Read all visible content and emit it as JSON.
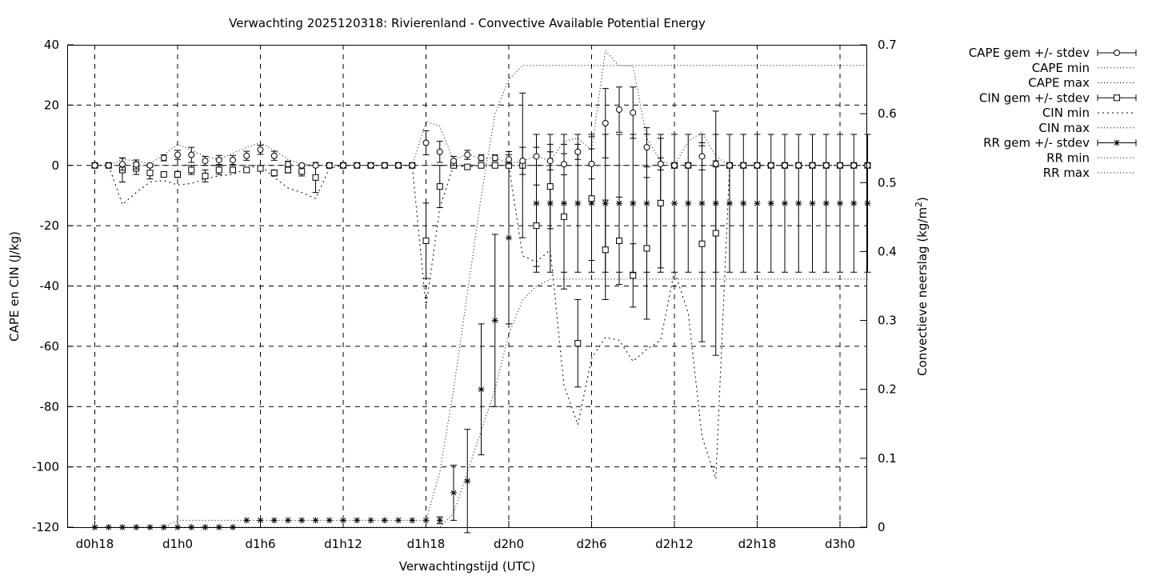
{
  "chart_data": {
    "type": "line",
    "title": "Verwachting 2025120318: Rivierenland - Convective Available Potential Energy",
    "xlabel": "Verwachtingstijd (UTC)",
    "ylabel": "CAPE en CIN (J/kg)",
    "y2label": "Convectieve neerslag (kg/m",
    "y2label_sup": "2",
    "y2label_end": ")",
    "xlim": [
      0,
      56
    ],
    "ylim": [
      -120,
      40
    ],
    "y2lim": [
      0,
      0.7
    ],
    "grid": true,
    "legend_position": "top-right",
    "xticks": [
      {
        "v": 0,
        "label": "d0h18"
      },
      {
        "v": 6,
        "label": "d1h0"
      },
      {
        "v": 12,
        "label": "d1h6"
      },
      {
        "v": 18,
        "label": "d1h12"
      },
      {
        "v": 24,
        "label": "d1h18"
      },
      {
        "v": 30,
        "label": "d2h0"
      },
      {
        "v": 36,
        "label": "d2h6"
      },
      {
        "v": 42,
        "label": "d2h12"
      },
      {
        "v": 48,
        "label": "d2h18"
      },
      {
        "v": 54,
        "label": "d3h0"
      }
    ],
    "yticks": [
      {
        "v": 40,
        "label": "40"
      },
      {
        "v": 20,
        "label": "20"
      },
      {
        "v": 0,
        "label": "0"
      },
      {
        "v": -20,
        "label": "-20"
      },
      {
        "v": -40,
        "label": "-40"
      },
      {
        "v": -60,
        "label": "-60"
      },
      {
        "v": -80,
        "label": "-80"
      },
      {
        "v": -100,
        "label": "-100"
      },
      {
        "v": -120,
        "label": "-120"
      }
    ],
    "y2ticks": [
      {
        "v": 0.7,
        "label": "0.7"
      },
      {
        "v": 0.6,
        "label": "0.6"
      },
      {
        "v": 0.5,
        "label": "0.5"
      },
      {
        "v": 0.4,
        "label": "0.4"
      },
      {
        "v": 0.3,
        "label": "0.3"
      },
      {
        "v": 0.2,
        "label": "0.2"
      },
      {
        "v": 0.1,
        "label": "0.1"
      },
      {
        "v": 0,
        "label": "0"
      }
    ],
    "legend": [
      {
        "label": "CAPE gem +/- stdev",
        "style": "errorbar",
        "marker": "circle"
      },
      {
        "label": "CAPE min",
        "style": "dotted"
      },
      {
        "label": "CAPE max",
        "style": "dotted"
      },
      {
        "label": "CIN gem +/- stdev",
        "style": "errorbar",
        "marker": "square"
      },
      {
        "label": "CIN min",
        "style": "dotted-sparse"
      },
      {
        "label": "CIN max",
        "style": "dotted"
      },
      {
        "label": "RR gem +/- stdev",
        "style": "errorbar",
        "marker": "star"
      },
      {
        "label": "RR min",
        "style": "dotted"
      },
      {
        "label": "RR max",
        "style": "dotted"
      }
    ],
    "cape": {
      "x": [
        0,
        1,
        2,
        3,
        4,
        5,
        6,
        7,
        8,
        9,
        10,
        11,
        12,
        13,
        14,
        15,
        16,
        17,
        18,
        19,
        20,
        21,
        22,
        23,
        24,
        25,
        26,
        27,
        28,
        29,
        30,
        31,
        32,
        33,
        34,
        35,
        36,
        37,
        38,
        39,
        40,
        41,
        42,
        43,
        44,
        45,
        46,
        47,
        48,
        49,
        50,
        51,
        52,
        53,
        54,
        55,
        56
      ],
      "mean": [
        0,
        0,
        0.4,
        0.3,
        0,
        2.5,
        3.5,
        3.5,
        1.5,
        1.8,
        1.8,
        3.2,
        5.2,
        3.2,
        0.4,
        0,
        0,
        0,
        0,
        0,
        0,
        0,
        0,
        0,
        7.5,
        4.5,
        1.5,
        3.5,
        2.5,
        2.5,
        2,
        1.5,
        3,
        1.5,
        0.4,
        4.5,
        0.5,
        14,
        18.5,
        17.5,
        6,
        0.5,
        0,
        0,
        3,
        0.5,
        0,
        0,
        0,
        0,
        0,
        0,
        0,
        0,
        0,
        0,
        0
      ],
      "stdev": [
        0,
        0,
        2,
        1.5,
        0.5,
        1,
        1.5,
        2.5,
        1.5,
        1.5,
        1.5,
        1.5,
        1.5,
        1.5,
        1,
        0.5,
        0,
        0,
        0,
        0,
        0,
        0,
        0,
        0,
        4,
        3.5,
        1.5,
        1.5,
        1,
        1,
        1.5,
        4.5,
        3,
        3,
        3.5,
        2.5,
        5,
        11.5,
        7.5,
        8.5,
        6.5,
        2,
        0,
        0,
        4.5,
        1,
        0,
        0,
        0,
        0,
        0,
        0,
        0,
        0,
        0,
        0,
        0
      ],
      "min": [
        0,
        0,
        0,
        0,
        0,
        0,
        0,
        0,
        0,
        0,
        0,
        0,
        0,
        0,
        0,
        0,
        0,
        0,
        0,
        0,
        0,
        0,
        0,
        0,
        0,
        0,
        0,
        0,
        0,
        0,
        0,
        0,
        0,
        0,
        0,
        0,
        0,
        0,
        0,
        0,
        0,
        0,
        0,
        0,
        0,
        0,
        0,
        0,
        0,
        0,
        0,
        0,
        0,
        0,
        0,
        0,
        0
      ],
      "max": [
        0,
        0,
        2,
        1.5,
        0.5,
        3.5,
        7,
        5,
        3,
        2,
        4,
        6,
        7.5,
        5,
        2,
        0.5,
        0,
        0,
        0,
        0,
        0,
        0,
        0,
        0,
        14.5,
        13,
        1.5,
        4,
        2,
        2.5,
        0.6,
        1.5,
        3,
        1.5,
        8,
        9,
        5,
        38,
        33,
        33,
        9,
        1.5,
        0,
        8,
        11,
        3,
        0,
        0,
        0,
        0,
        0,
        0,
        0,
        0,
        0,
        0,
        0
      ]
    },
    "cin": {
      "x": [
        0,
        1,
        2,
        3,
        4,
        5,
        6,
        7,
        8,
        9,
        10,
        11,
        12,
        13,
        14,
        15,
        16,
        17,
        18,
        19,
        20,
        21,
        22,
        23,
        24,
        25,
        26,
        27,
        28,
        29,
        30,
        31,
        32,
        33,
        34,
        35,
        36,
        37,
        38,
        39,
        40,
        41,
        42,
        43,
        44,
        45,
        46,
        47,
        48,
        49,
        50,
        51,
        52,
        53,
        54,
        55,
        56
      ],
      "mean": [
        0,
        0,
        -1.5,
        -1,
        -2.5,
        -3,
        -3,
        -1.5,
        -3.5,
        -1.5,
        -1.5,
        -1.5,
        -1,
        -2.5,
        -1.5,
        -2,
        -4,
        0,
        0,
        0,
        0,
        0,
        0,
        0,
        -25,
        -7,
        0,
        -0.5,
        0,
        0,
        0,
        0,
        -20,
        -7,
        -17,
        -59,
        -11,
        -28,
        -25,
        -36.5,
        -27.5,
        -12.5,
        0,
        0,
        -26,
        -22.5,
        0,
        0,
        0,
        0,
        0,
        0,
        0,
        0,
        0,
        0,
        0
      ],
      "stdev": [
        0,
        0,
        4,
        2,
        2,
        0.5,
        1,
        1.5,
        2,
        1.5,
        0.5,
        0.5,
        0.5,
        1,
        1,
        1.5,
        5,
        0,
        0,
        0,
        0,
        0,
        0,
        0,
        12.5,
        7,
        0,
        0,
        0,
        0,
        0,
        0,
        13.5,
        14,
        24,
        14.5,
        20.5,
        16.5,
        14.5,
        10.5,
        23.5,
        21.5,
        0,
        0,
        32.5,
        40.5,
        0,
        0,
        0,
        0,
        0,
        0,
        0,
        0,
        0,
        0,
        0
      ],
      "min": [
        0,
        0,
        -13,
        -9,
        -5.5,
        -5,
        -6.5,
        -6,
        -4.5,
        -3.5,
        -3,
        -1,
        0,
        -4,
        -7.5,
        -9,
        -11,
        -1,
        0,
        0,
        0,
        0,
        0,
        0,
        -47,
        -14,
        0,
        -0.5,
        0,
        0,
        0,
        -30,
        -32,
        -28,
        -73,
        -86,
        -64,
        -57,
        -58,
        -65,
        -61,
        -58,
        -35,
        -49,
        -90,
        -104,
        0,
        0,
        0,
        0,
        0,
        0,
        0,
        0,
        0,
        0,
        0
      ],
      "max": [
        0,
        0,
        0,
        0,
        0,
        0,
        0,
        0,
        0,
        0,
        0,
        0,
        0,
        0,
        0,
        0,
        0,
        0,
        0,
        0,
        0,
        0,
        0,
        0,
        0,
        0,
        0,
        0,
        0,
        0,
        0,
        0,
        0,
        0,
        0,
        0,
        0,
        0,
        0,
        0,
        0,
        0,
        0,
        0,
        0,
        0,
        0,
        0,
        0,
        0,
        0,
        0,
        0,
        0,
        0,
        0,
        0
      ]
    },
    "rr": {
      "x": [
        0,
        1,
        2,
        3,
        4,
        5,
        6,
        7,
        8,
        9,
        10,
        11,
        12,
        13,
        14,
        15,
        16,
        17,
        18,
        19,
        20,
        21,
        22,
        23,
        24,
        25,
        26,
        27,
        28,
        29,
        30,
        31,
        32,
        33,
        34,
        35,
        36,
        37,
        38,
        39,
        40,
        41,
        42,
        43,
        44,
        45,
        46,
        47,
        48,
        49,
        50,
        51,
        52,
        53,
        54,
        55,
        56
      ],
      "mean": [
        0,
        0,
        0,
        0,
        0,
        0,
        0,
        0,
        0,
        0,
        0,
        0.01,
        0.01,
        0.01,
        0.01,
        0.01,
        0.01,
        0.01,
        0.01,
        0.01,
        0.01,
        0.01,
        0.01,
        0.01,
        0.01,
        0.01,
        0.05,
        0.067,
        0.2,
        0.3,
        0.42,
        0.525,
        0.47,
        0.47,
        0.47,
        0.47,
        0.47,
        0.47,
        0.47,
        0.47,
        0.47,
        0.47,
        0.47,
        0.47,
        0.47,
        0.47,
        0.47,
        0.47,
        0.47,
        0.47,
        0.47,
        0.47,
        0.47,
        0.47,
        0.47,
        0.47,
        0.47
      ],
      "stdev": [
        0,
        0,
        0,
        0,
        0,
        0,
        0,
        0,
        0,
        0,
        0,
        0,
        0,
        0,
        0,
        0,
        0,
        0,
        0,
        0,
        0,
        0,
        0,
        0,
        0,
        0.005,
        0.04,
        0.075,
        0.095,
        0.125,
        0.125,
        0.105,
        0.1,
        0.1,
        0.1,
        0.1,
        0.1,
        0.1,
        0.1,
        0.1,
        0.1,
        0.1,
        0.1,
        0.1,
        0.1,
        0.1,
        0.1,
        0.1,
        0.1,
        0.1,
        0.1,
        0.1,
        0.1,
        0.1,
        0.1,
        0.1,
        0.1
      ],
      "min": [
        0,
        0,
        0,
        0,
        0,
        0,
        0,
        0,
        0,
        0,
        0,
        0,
        0,
        0,
        0,
        0,
        0,
        0,
        0,
        0,
        0,
        0,
        0,
        0,
        0,
        0,
        0.02,
        0.08,
        0.14,
        0.2,
        0.28,
        0.33,
        0.35,
        0.36,
        0.36,
        0.36,
        0.36,
        0.36,
        0.36,
        0.36,
        0.36,
        0.36,
        0.36,
        0.36,
        0.36,
        0.36,
        0.36,
        0.36,
        0.36,
        0.36,
        0.36,
        0.36,
        0.36,
        0.36,
        0.36,
        0.36,
        0.36
      ],
      "max": [
        0,
        0,
        0,
        0,
        0,
        0,
        0.01,
        0.01,
        0.01,
        0.01,
        0.01,
        0.01,
        0.01,
        0.01,
        0.01,
        0.01,
        0.01,
        0.01,
        0.01,
        0.01,
        0.01,
        0.01,
        0.01,
        0.01,
        0.01,
        0.08,
        0.2,
        0.34,
        0.48,
        0.6,
        0.65,
        0.67,
        0.67,
        0.67,
        0.67,
        0.67,
        0.67,
        0.67,
        0.67,
        0.67,
        0.67,
        0.67,
        0.67,
        0.67,
        0.67,
        0.67,
        0.67,
        0.67,
        0.67,
        0.67,
        0.67,
        0.67,
        0.67,
        0.67,
        0.67,
        0.67,
        0.67
      ]
    }
  }
}
